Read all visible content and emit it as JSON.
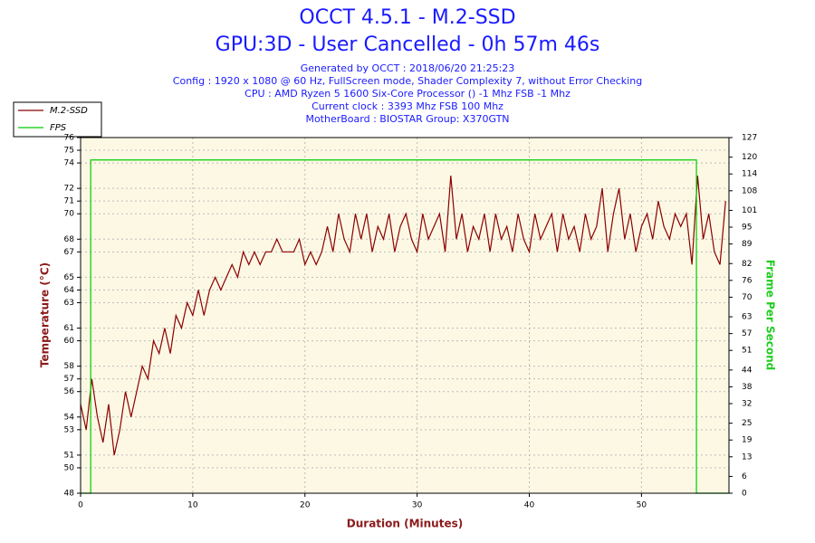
{
  "chart_data": {
    "type": "line",
    "title": [
      "OCCT 4.5.1 - M.2-SSD",
      "GPU:3D - User Cancelled - 0h 57m 46s"
    ],
    "subtitle": [
      "Generated by OCCT : 2018/06/20 21:25:23",
      "Config : 1920 x 1080 @ 60 Hz, FullScreen mode, Shader Complexity 7, without Error Checking",
      "CPU : AMD Ryzen 5 1600 Six-Core Processor () -1 Mhz FSB -1 Mhz",
      "Current clock : 3393 Mhz FSB 100 Mhz",
      "MotherBoard : BIOSTAR Group: X370GTN"
    ],
    "x_label": "Duration (Minutes)",
    "y_label": "Temperature (°C)",
    "y2_label": "Frame Per Second",
    "xlim": [
      0,
      57.8
    ],
    "xticks": [
      0,
      10,
      20,
      30,
      40,
      50
    ],
    "ylim": [
      48,
      76
    ],
    "yticks": [
      48,
      50,
      51,
      53,
      54,
      56,
      57,
      58,
      60,
      61,
      63,
      64,
      65,
      67,
      68,
      70,
      71,
      72,
      74,
      75,
      76
    ],
    "y2lim": [
      0,
      127
    ],
    "y2ticks": [
      0,
      6,
      13,
      19,
      25,
      32,
      38,
      44,
      51,
      57,
      63,
      70,
      76,
      82,
      89,
      95,
      101,
      108,
      114,
      120,
      127
    ],
    "grid": true,
    "legend": "top-left",
    "series": [
      {
        "name": "M.2-SSD",
        "color": "#8b0000",
        "x": [
          0,
          0.5,
          1,
          1.5,
          2,
          2.5,
          3,
          3.5,
          4,
          4.5,
          5,
          5.5,
          6,
          6.5,
          7,
          7.5,
          8,
          8.5,
          9,
          9.5,
          10,
          10.5,
          11,
          11.5,
          12,
          12.5,
          13,
          13.5,
          14,
          14.5,
          15,
          15.5,
          16,
          16.5,
          17,
          17.5,
          18,
          18.5,
          19,
          19.5,
          20,
          20.5,
          21,
          21.5,
          22,
          22.5,
          23,
          23.5,
          24,
          24.5,
          25,
          25.5,
          26,
          26.5,
          27,
          27.5,
          28,
          28.5,
          29,
          29.5,
          30,
          30.5,
          31,
          31.5,
          32,
          32.5,
          33,
          33.5,
          34,
          34.5,
          35,
          35.5,
          36,
          36.5,
          37,
          37.5,
          38,
          38.5,
          39,
          39.5,
          40,
          40.5,
          41,
          41.5,
          42,
          42.5,
          43,
          43.5,
          44,
          44.5,
          45,
          45.5,
          46,
          46.5,
          47,
          47.5,
          48,
          48.5,
          49,
          49.5,
          50,
          50.5,
          51,
          51.5,
          52,
          52.5,
          53,
          53.5,
          54,
          54.5,
          55,
          55.5,
          56,
          56.5,
          57,
          57.5
        ],
        "values": [
          55,
          53,
          57,
          54,
          52,
          55,
          51,
          53,
          56,
          54,
          56,
          58,
          57,
          60,
          59,
          61,
          59,
          62,
          61,
          63,
          62,
          64,
          62,
          64,
          65,
          64,
          65,
          66,
          65,
          67,
          66,
          67,
          66,
          67,
          67,
          68,
          67,
          67,
          67,
          68,
          66,
          67,
          66,
          67,
          69,
          67,
          70,
          68,
          67,
          70,
          68,
          70,
          67,
          69,
          68,
          70,
          67,
          69,
          70,
          68,
          67,
          70,
          68,
          69,
          70,
          67,
          73,
          68,
          70,
          67,
          69,
          68,
          70,
          67,
          70,
          68,
          69,
          67,
          70,
          68,
          67,
          70,
          68,
          69,
          70,
          67,
          70,
          68,
          69,
          67,
          70,
          68,
          69,
          72,
          67,
          70,
          72,
          68,
          70,
          67,
          69,
          70,
          68,
          71,
          69,
          68,
          70,
          69,
          70,
          66,
          73,
          68,
          70,
          67,
          66,
          71
        ]
      },
      {
        "name": "FPS",
        "color": "#00cc00",
        "axis": "y2",
        "x": [
          0,
          0.9,
          0.9,
          54.9,
          54.9,
          57.8
        ],
        "values": [
          0,
          0,
          119,
          119,
          0,
          0
        ]
      }
    ]
  }
}
